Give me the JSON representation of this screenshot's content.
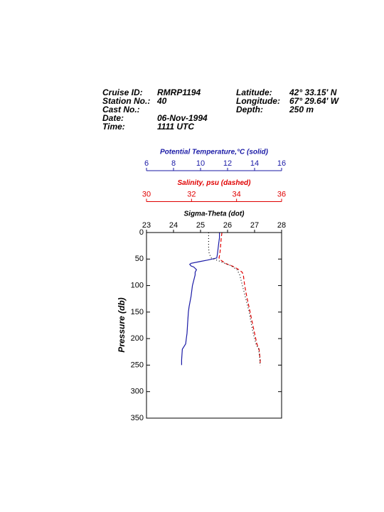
{
  "chart_data": {
    "type": "profile",
    "header": {
      "left": [
        [
          "Cruise ID:",
          "RMRP1194"
        ],
        [
          "Station No.:",
          "40"
        ],
        [
          "Cast No.:",
          null
        ],
        [
          "Date:",
          "06-Nov-1994"
        ],
        [
          "Time:",
          "1111 UTC"
        ]
      ],
      "right": [
        [
          "Latitude:",
          "42° 33.15' N"
        ],
        [
          "Longitude:",
          "67° 29.64' W"
        ],
        [
          "Depth:",
          "250 m"
        ]
      ]
    },
    "y_label": "Pressure (db)",
    "ylim": [
      0,
      350
    ],
    "y_inverted": true,
    "yticks": [
      0,
      50,
      100,
      150,
      200,
      250,
      300,
      350
    ],
    "pressure": [
      0,
      10,
      20,
      30,
      40,
      48,
      52,
      55,
      58,
      60,
      63,
      65,
      70,
      75,
      80,
      90,
      100,
      120,
      140,
      150,
      170,
      190,
      200,
      210,
      220,
      240,
      250
    ],
    "axes": [
      {
        "title": "Potential Temperature,°C (solid)",
        "color": "#1a1aa6",
        "style": "solid",
        "xlim": [
          6,
          16
        ],
        "xticks": [
          6,
          8,
          10,
          12,
          14,
          16
        ],
        "values": [
          11.4,
          11.4,
          11.35,
          11.3,
          11.25,
          11.2,
          10.5,
          9.9,
          9.3,
          9.2,
          9.3,
          9.5,
          9.7,
          9.6,
          9.6,
          9.5,
          9.4,
          9.3,
          9.15,
          9.1,
          9.05,
          9.0,
          8.95,
          8.9,
          8.65,
          8.6,
          8.6
        ]
      },
      {
        "title": "Salinity, psu  (dashed)",
        "color": "#e00000",
        "style": "dashed",
        "xlim": [
          30,
          36
        ],
        "xticks": [
          30,
          32,
          34,
          36
        ],
        "values": [
          33.35,
          33.32,
          33.3,
          33.28,
          33.26,
          33.22,
          33.3,
          33.4,
          33.5,
          33.6,
          33.8,
          33.9,
          34.1,
          34.25,
          34.3,
          34.33,
          34.36,
          34.45,
          34.55,
          34.6,
          34.7,
          34.8,
          34.85,
          34.9,
          35.0,
          35.05,
          35.05
        ]
      },
      {
        "title": "Sigma-Theta (dot)",
        "color": "#000000",
        "style": "dotted",
        "xlim": [
          23,
          28
        ],
        "xticks": [
          23,
          24,
          25,
          26,
          27,
          28
        ],
        "values": [
          25.3,
          25.3,
          25.3,
          25.3,
          25.32,
          25.4,
          25.6,
          25.75,
          25.9,
          26.0,
          26.15,
          26.2,
          26.35,
          26.4,
          26.45,
          26.5,
          26.55,
          26.65,
          26.75,
          26.8,
          26.87,
          26.95,
          27.0,
          27.05,
          27.15,
          27.2,
          27.2
        ]
      }
    ]
  }
}
